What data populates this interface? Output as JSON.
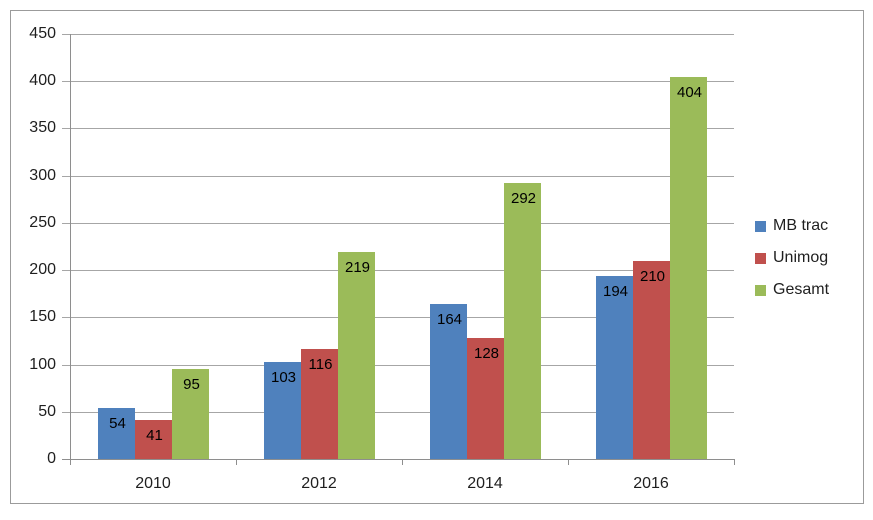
{
  "chart_data": {
    "type": "bar",
    "title": "",
    "xlabel": "",
    "ylabel": "",
    "categories": [
      "2010",
      "2012",
      "2014",
      "2016"
    ],
    "series": [
      {
        "name": "MB trac",
        "color": "#4F81BD",
        "values": [
          54,
          103,
          164,
          194
        ]
      },
      {
        "name": "Unimog",
        "color": "#C0504D",
        "values": [
          41,
          116,
          128,
          210
        ]
      },
      {
        "name": "Gesamt",
        "color": "#9BBB59",
        "values": [
          95,
          219,
          292,
          404
        ]
      }
    ],
    "ylim": [
      0,
      450
    ],
    "yticks": [
      0,
      50,
      100,
      150,
      200,
      250,
      300,
      350,
      400,
      450
    ],
    "grid": true,
    "legend_position": "right",
    "data_labels": "inside-end",
    "colors": {
      "gridline": "#a6a6a6",
      "axis": "#8e8e8e",
      "frame_border": "#9b9b9b",
      "tick_text": "#1f1f1f",
      "data_label_text": "#000000",
      "background": "#ffffff"
    }
  }
}
